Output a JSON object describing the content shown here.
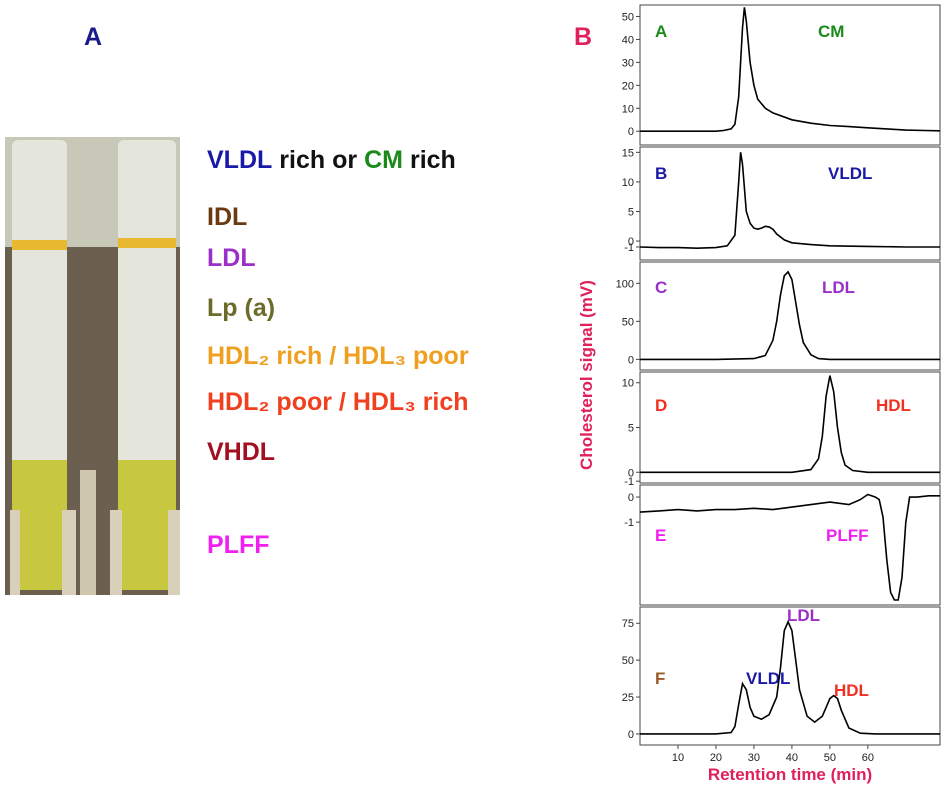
{
  "panel_a": {
    "label": "A",
    "label_color": "#1a1a8c",
    "first_line": [
      {
        "text": "VLDL",
        "color": "#1a1aa8"
      },
      {
        "text": "rich or",
        "color": "#111111"
      },
      {
        "text": "CM",
        "color": "#1a8a1a"
      },
      {
        "text": "rich",
        "color": "#111111"
      }
    ],
    "bands": [
      {
        "text": "IDL",
        "color": "#6b3a10"
      },
      {
        "text": "LDL",
        "color": "#9b30c8"
      },
      {
        "text": "Lp (a)",
        "color": "#6b6b2b"
      },
      {
        "text": "HDL₂ rich / HDL₃ poor",
        "color": "#f0a020"
      },
      {
        "text": "HDL₂ poor / HDL₃ rich",
        "color": "#f04020"
      },
      {
        "text": "VHDL",
        "color": "#a01020"
      },
      {
        "text": "PLFF",
        "color": "#f020f0"
      }
    ]
  },
  "panel_b": {
    "label": "B",
    "label_color": "#e0205a",
    "y_label": "Cholesterol signal (mV)",
    "x_label": "Retention time (min)",
    "axis_label_color": "#e0205a"
  },
  "chart_data": [
    {
      "type": "line",
      "label": "A",
      "label_color": "#1a8a1a",
      "annotations": [
        {
          "text": "CM",
          "color": "#1a8a1a"
        }
      ],
      "color": "#000000",
      "xlim": [
        0,
        79
      ],
      "ylim": [
        -6,
        55
      ],
      "yticks": [
        0,
        10,
        20,
        30,
        40,
        50
      ],
      "x": [
        0,
        5,
        10,
        15,
        20,
        22,
        24,
        25,
        26,
        27,
        27.5,
        28,
        29,
        30,
        31,
        33,
        35,
        40,
        45,
        50,
        55,
        60,
        65,
        70,
        75,
        79
      ],
      "values": [
        0,
        0,
        0,
        0,
        0,
        0.3,
        1,
        3,
        15,
        45,
        54,
        48,
        30,
        20,
        14,
        10,
        8,
        5,
        3.5,
        2.5,
        2,
        1.5,
        1,
        0.5,
        0.3,
        0.2
      ]
    },
    {
      "type": "line",
      "label": "B",
      "label_color": "#1a1aa8",
      "annotations": [
        {
          "text": "VLDL",
          "color": "#1a1aa8"
        }
      ],
      "color": "#000000",
      "xlim": [
        0,
        79
      ],
      "ylim": [
        -3.2,
        15.9
      ],
      "yticks": [
        -1,
        0,
        5,
        10,
        15
      ],
      "x": [
        0,
        5,
        10,
        15,
        20,
        23,
        25,
        26,
        26.5,
        27,
        28,
        29,
        30,
        31,
        32,
        33,
        34,
        35,
        36,
        38,
        40,
        45,
        50,
        60,
        70,
        79
      ],
      "values": [
        -1,
        -1.1,
        -1.1,
        -1.2,
        -1.1,
        -0.8,
        1,
        10,
        15,
        13,
        5,
        3,
        2.2,
        2,
        2.2,
        2.5,
        2.4,
        2,
        1.2,
        0.2,
        -0.3,
        -0.6,
        -0.8,
        -0.9,
        -1,
        -1
      ]
    },
    {
      "type": "line",
      "label": "C",
      "label_color": "#9b30c8",
      "annotations": [
        {
          "text": "LDL",
          "color": "#9b30c8"
        }
      ],
      "color": "#000000",
      "xlim": [
        0,
        79
      ],
      "ylim": [
        -14,
        128
      ],
      "yticks": [
        0,
        50,
        100
      ],
      "x": [
        0,
        10,
        20,
        30,
        33,
        35,
        36,
        37,
        38,
        39,
        40,
        41,
        42,
        43,
        45,
        47,
        50,
        60,
        70,
        79
      ],
      "values": [
        0,
        0,
        0,
        1,
        5,
        25,
        50,
        85,
        110,
        115,
        105,
        75,
        45,
        22,
        6,
        1,
        0,
        0,
        0,
        0
      ]
    },
    {
      "type": "line",
      "label": "D",
      "label_color": "#f03020",
      "annotations": [
        {
          "text": "HDL",
          "color": "#f03020"
        }
      ],
      "color": "#000000",
      "xlim": [
        0,
        79
      ],
      "ylim": [
        -1.2,
        11.2
      ],
      "yticks": [
        -1,
        0,
        5,
        10
      ],
      "x": [
        0,
        10,
        20,
        30,
        40,
        45,
        47,
        48,
        49,
        50,
        51,
        52,
        53,
        54,
        56,
        60,
        70,
        79
      ],
      "values": [
        0,
        0,
        0,
        0,
        0,
        0.3,
        1.5,
        4,
        8.5,
        10.8,
        9,
        5,
        2.2,
        0.8,
        0.2,
        0,
        0,
        0
      ]
    },
    {
      "type": "line",
      "label": "E",
      "label_color": "#f020f0",
      "annotations": [
        {
          "text": "PLFF",
          "color": "#f020f0"
        }
      ],
      "color": "#000000",
      "xlim": [
        0,
        79
      ],
      "ylim": [
        -4.3,
        0.48
      ],
      "yticks": [
        -1,
        0
      ],
      "x": [
        0,
        5,
        10,
        15,
        20,
        25,
        30,
        35,
        40,
        45,
        50,
        55,
        58,
        60,
        61,
        62,
        63,
        64,
        65,
        66,
        67,
        68,
        69,
        70,
        71,
        73,
        76,
        79
      ],
      "values": [
        -0.6,
        -0.55,
        -0.5,
        -0.55,
        -0.5,
        -0.5,
        -0.45,
        -0.5,
        -0.4,
        -0.3,
        -0.2,
        -0.3,
        -0.1,
        0.1,
        0.05,
        0,
        -0.1,
        -0.8,
        -2.5,
        -3.8,
        -4.1,
        -4.1,
        -3.2,
        -1,
        0,
        0,
        0.05,
        0.05
      ]
    },
    {
      "type": "line",
      "label": "F",
      "label_color": "#9b5a2a",
      "annotations": [
        {
          "text": "VLDL",
          "color": "#1a1aa8"
        },
        {
          "text": "LDL",
          "color": "#9b30c8"
        },
        {
          "text": "HDL",
          "color": "#f03020"
        }
      ],
      "color": "#000000",
      "xlim": [
        0,
        79
      ],
      "ylim": [
        -7.5,
        86
      ],
      "yticks": [
        0,
        25,
        50,
        75
      ],
      "xticks": [
        10,
        20,
        30,
        40,
        50,
        60
      ],
      "x": [
        0,
        10,
        20,
        24,
        25,
        26,
        27,
        28,
        29,
        30,
        32,
        34,
        36,
        37,
        38,
        39,
        40,
        41,
        42,
        44,
        46,
        48,
        49,
        50,
        51,
        52,
        53,
        55,
        58,
        62,
        70,
        79
      ],
      "values": [
        0,
        0,
        0,
        1,
        5,
        20,
        34,
        30,
        18,
        12,
        10,
        13,
        25,
        45,
        70,
        76,
        70,
        50,
        30,
        12,
        8,
        12,
        18,
        24,
        26,
        24,
        16,
        4,
        0.5,
        0,
        0,
        0
      ]
    }
  ]
}
